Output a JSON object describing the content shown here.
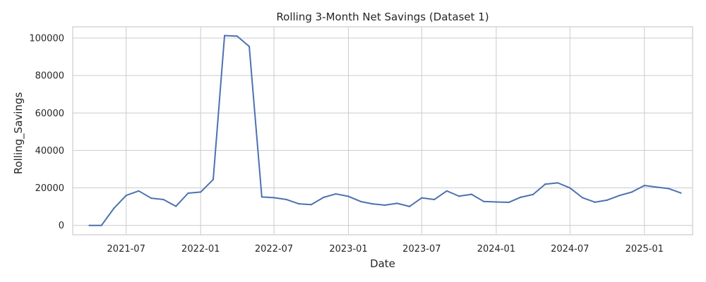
{
  "chart_data": {
    "type": "line",
    "title": "Rolling 3-Month Net Savings (Dataset 1)",
    "xlabel": "Date",
    "ylabel": "Rolling_Savings",
    "grid": true,
    "legend": "none",
    "line_color": "#4c72b0",
    "xlim": [
      "2021-02-19",
      "2025-04-30"
    ],
    "ylim": [
      -5000,
      106000
    ],
    "x_ticks": [
      "2021-07",
      "2022-01",
      "2022-07",
      "2023-01",
      "2023-07",
      "2024-01",
      "2024-07",
      "2025-01"
    ],
    "y_ticks": [
      "0",
      "20000",
      "40000",
      "60000",
      "80000",
      "100000"
    ],
    "y_tick_values": [
      0,
      20000,
      40000,
      60000,
      80000,
      100000
    ],
    "series": [
      {
        "x": [
          "2021-04-01",
          "2021-05-01",
          "2021-06-01",
          "2021-07-01",
          "2021-08-01",
          "2021-09-01",
          "2021-10-01",
          "2021-11-01",
          "2021-12-01",
          "2022-01-01",
          "2022-02-01",
          "2022-03-01",
          "2022-04-01",
          "2022-05-01",
          "2022-06-01",
          "2022-07-01",
          "2022-08-01",
          "2022-09-01",
          "2022-10-01",
          "2022-11-01",
          "2022-12-01",
          "2023-01-01",
          "2023-02-01",
          "2023-03-01",
          "2023-04-01",
          "2023-05-01",
          "2023-06-01",
          "2023-07-01",
          "2023-08-01",
          "2023-09-01",
          "2023-10-01",
          "2023-11-01",
          "2023-12-01",
          "2024-01-01",
          "2024-02-01",
          "2024-03-01",
          "2024-04-01",
          "2024-05-01",
          "2024-06-01",
          "2024-07-01",
          "2024-08-01",
          "2024-09-01",
          "2024-10-01",
          "2024-11-01",
          "2024-12-01",
          "2025-01-01",
          "2025-02-01",
          "2025-03-01",
          "2025-04-01"
        ],
        "values": [
          0,
          0,
          9200,
          16000,
          18400,
          14500,
          13800,
          10200,
          17200,
          17800,
          24500,
          101300,
          101000,
          95500,
          15200,
          14800,
          13800,
          11500,
          11100,
          15000,
          16800,
          15500,
          12700,
          11500,
          10800,
          11800,
          10100,
          14700,
          13800,
          18400,
          15600,
          16600,
          12800,
          12500,
          12300,
          15000,
          16500,
          22000,
          22700,
          20000,
          14800,
          12400,
          13500,
          16000,
          17800,
          21300,
          20400,
          19700,
          17300
        ]
      }
    ]
  }
}
